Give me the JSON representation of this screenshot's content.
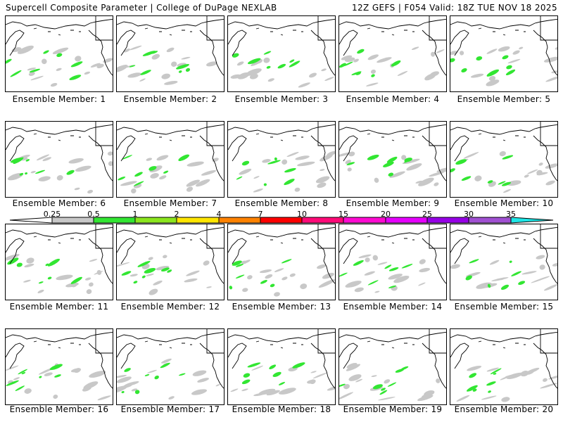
{
  "header": {
    "left": "Supercell Composite Parameter | College of DuPage NEXLAB",
    "right": "12Z GEFS | F054 Valid: 18Z TUE NOV 18 2025"
  },
  "panels": [
    {
      "label": "Ensemble Member: 1"
    },
    {
      "label": "Ensemble Member: 2"
    },
    {
      "label": "Ensemble Member: 3"
    },
    {
      "label": "Ensemble Member: 4"
    },
    {
      "label": "Ensemble Member: 5"
    },
    {
      "label": "Ensemble Member: 6"
    },
    {
      "label": "Ensemble Member: 7"
    },
    {
      "label": "Ensemble Member: 8"
    },
    {
      "label": "Ensemble Member: 9"
    },
    {
      "label": "Ensemble Member: 10"
    },
    {
      "label": "Ensemble Member: 11"
    },
    {
      "label": "Ensemble Member: 12"
    },
    {
      "label": "Ensemble Member: 13"
    },
    {
      "label": "Ensemble Member: 14"
    },
    {
      "label": "Ensemble Member: 15"
    },
    {
      "label": "Ensemble Member: 16"
    },
    {
      "label": "Ensemble Member: 17"
    },
    {
      "label": "Ensemble Member: 18"
    },
    {
      "label": "Ensemble Member: 19"
    },
    {
      "label": "Ensemble Member: 20"
    }
  ],
  "colorbar": {
    "ticks": [
      "0.25",
      "0.5",
      "1",
      "2",
      "4",
      "7",
      "10",
      "15",
      "20",
      "25",
      "30",
      "35"
    ],
    "colors": [
      "#c8c8c8",
      "#32e632",
      "#8be61e",
      "#ffe600",
      "#ff8200",
      "#ff0000",
      "#ff0a78",
      "#ff0ad2",
      "#e600ff",
      "#9600e6",
      "#a050d2",
      "#1ee6e6"
    ],
    "low_color": "#ffffff"
  }
}
